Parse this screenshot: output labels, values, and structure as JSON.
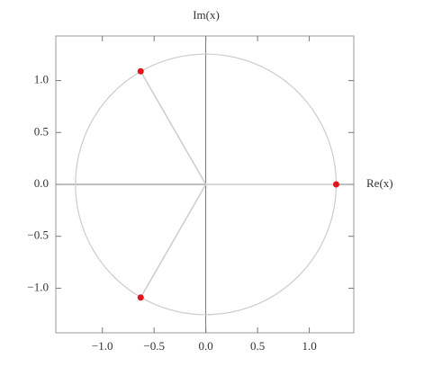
{
  "chart_data": {
    "type": "scatter",
    "x_label": "Re(x)",
    "y_label": "Im(x)",
    "x": [
      1.26,
      -0.63,
      -0.63
    ],
    "series": [
      {
        "color": "#e0141b",
        "values": [
          0,
          1.09,
          -1.09
        ]
      }
    ],
    "xlim": [
      -1.45,
      1.43
    ],
    "ylim": [
      -1.43,
      1.43
    ],
    "xticks": [
      {
        "value": -1,
        "label": "−1.0"
      },
      {
        "value": -0.5,
        "label": "−0.5"
      },
      {
        "value": 0,
        "label": "0.0"
      },
      {
        "value": 0.5,
        "label": "0.5"
      },
      {
        "value": 1,
        "label": "1.0"
      }
    ],
    "yticks": [
      {
        "value": -1,
        "label": "−1.0"
      },
      {
        "value": -0.5,
        "label": "−0.5"
      },
      {
        "value": 0,
        "label": "0.0"
      },
      {
        "value": 0.5,
        "label": "0.5"
      },
      {
        "value": 1,
        "label": "1.0"
      }
    ],
    "grid": false
  }
}
